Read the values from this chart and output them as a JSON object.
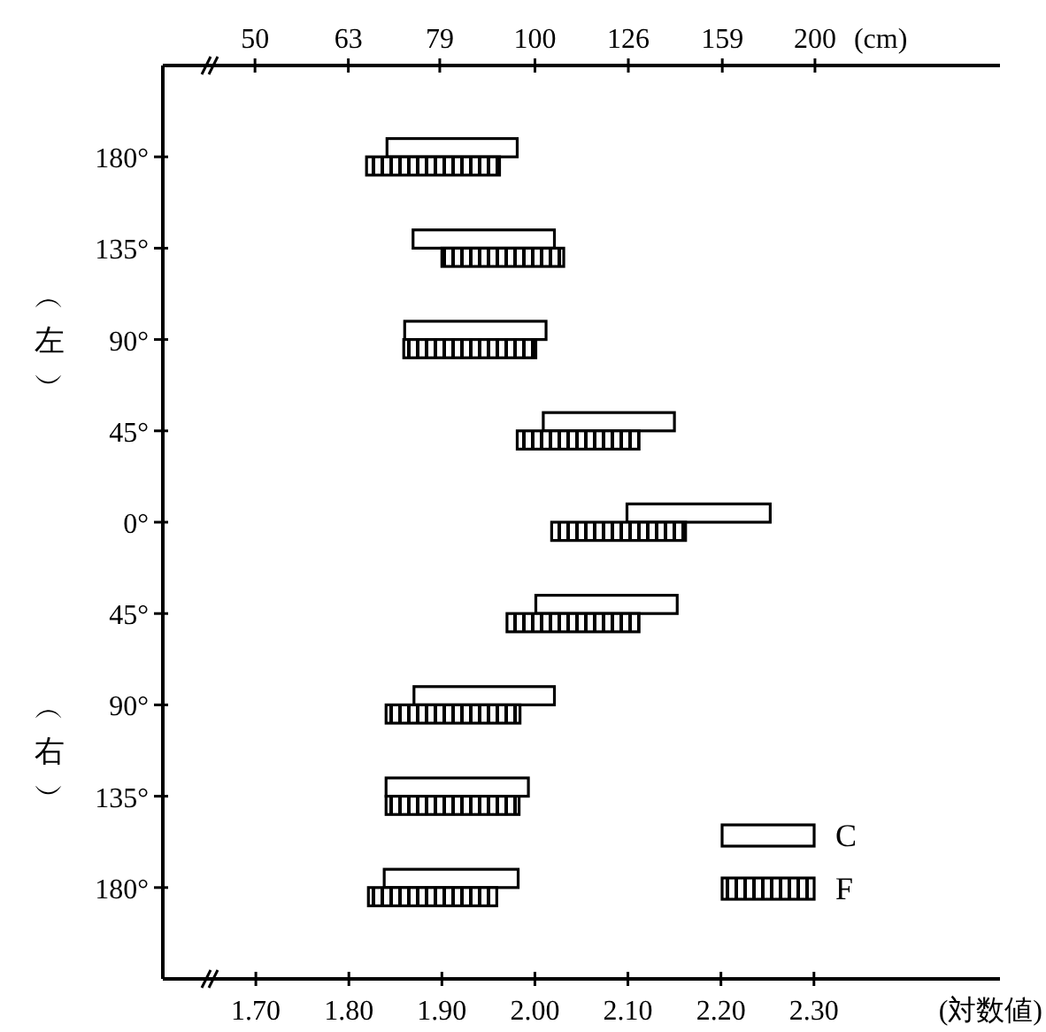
{
  "chart_data": {
    "type": "bar",
    "orientation": "horizontal",
    "xlabel": "(対数値)",
    "x2label": "(cm)",
    "categories": [
      "180°",
      "135°",
      "90°",
      "45°",
      "0°",
      "45°",
      "90°",
      "135°",
      "180°"
    ],
    "series": [
      {
        "name": "C",
        "color": "#ffffff",
        "base": [
          1.841,
          1.869,
          1.86,
          2.009,
          2.099,
          2.001,
          1.87,
          1.84,
          1.838
        ],
        "values": [
          0.14,
          0.152,
          0.152,
          0.141,
          0.154,
          0.152,
          0.151,
          0.153,
          0.144
        ]
      },
      {
        "name": "F",
        "color": "#000000",
        "base": [
          1.819,
          1.9,
          1.859,
          1.981,
          2.018,
          1.97,
          1.84,
          1.84,
          1.821
        ],
        "values": [
          0.143,
          0.131,
          0.142,
          0.131,
          0.144,
          0.142,
          0.144,
          0.143,
          0.138
        ]
      }
    ],
    "xlim": [
      1.6,
      2.5
    ],
    "xticks": [
      {
        "value": 1.7,
        "label": "1.70"
      },
      {
        "value": 1.8,
        "label": "1.80"
      },
      {
        "value": 1.9,
        "label": "1.90"
      },
      {
        "value": 2.0,
        "label": "2.00"
      },
      {
        "value": 2.1,
        "label": "2.10"
      },
      {
        "value": 2.2,
        "label": "2.20"
      },
      {
        "value": 2.3,
        "label": "2.30"
      }
    ],
    "x2lim": [
      39.8,
      316.2
    ],
    "log": "x2",
    "x2ticks": [
      50,
      63,
      79,
      100,
      126,
      159,
      200
    ],
    "annotations": [
      "︵左︶",
      "︵右︶"
    ],
    "legend": "bottom right"
  }
}
